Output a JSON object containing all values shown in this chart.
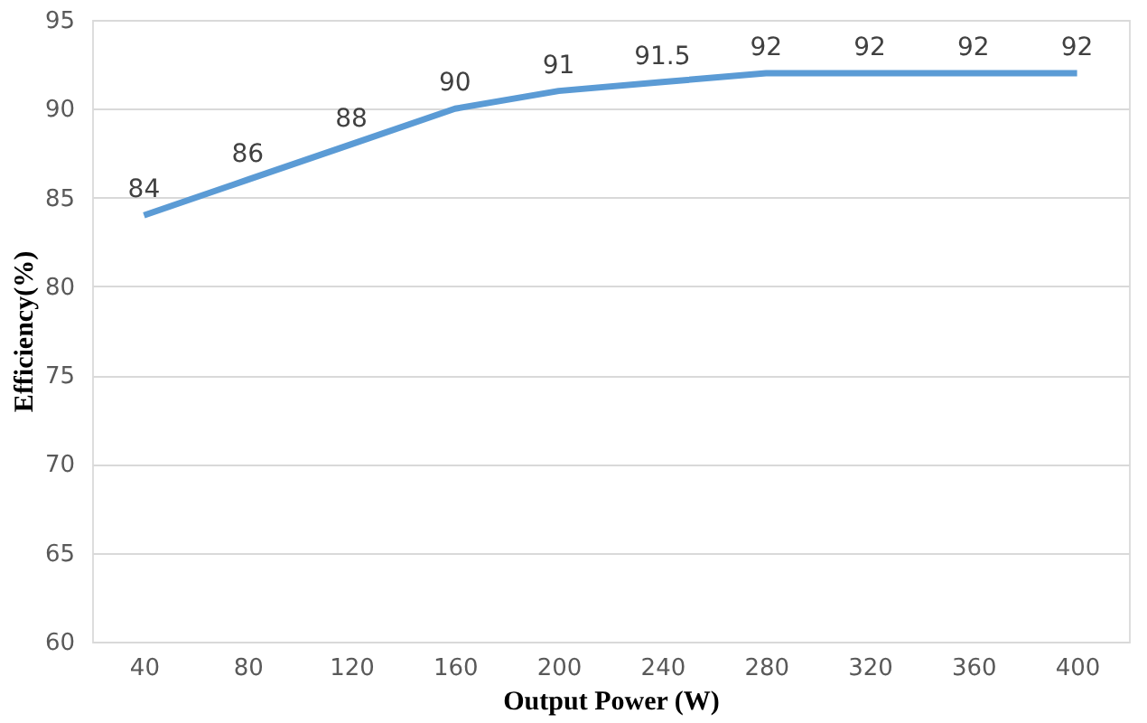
{
  "chart_data": {
    "type": "line",
    "xlabel": "Output Power (W)",
    "ylabel": "Efficiency(%)",
    "categories": [
      "40",
      "80",
      "120",
      "160",
      "200",
      "240",
      "280",
      "320",
      "360",
      "400"
    ],
    "series": [
      {
        "color": "#5b9bd5",
        "values": [
          84,
          86,
          88,
          90,
          91,
          91.5,
          92,
          92,
          92,
          92
        ]
      }
    ],
    "ylim": [
      60,
      95
    ],
    "yticks": [
      60,
      65,
      70,
      75,
      80,
      85,
      90,
      95
    ],
    "grid": "y",
    "data_labels": true,
    "marker": "none",
    "line_style": "solid"
  }
}
